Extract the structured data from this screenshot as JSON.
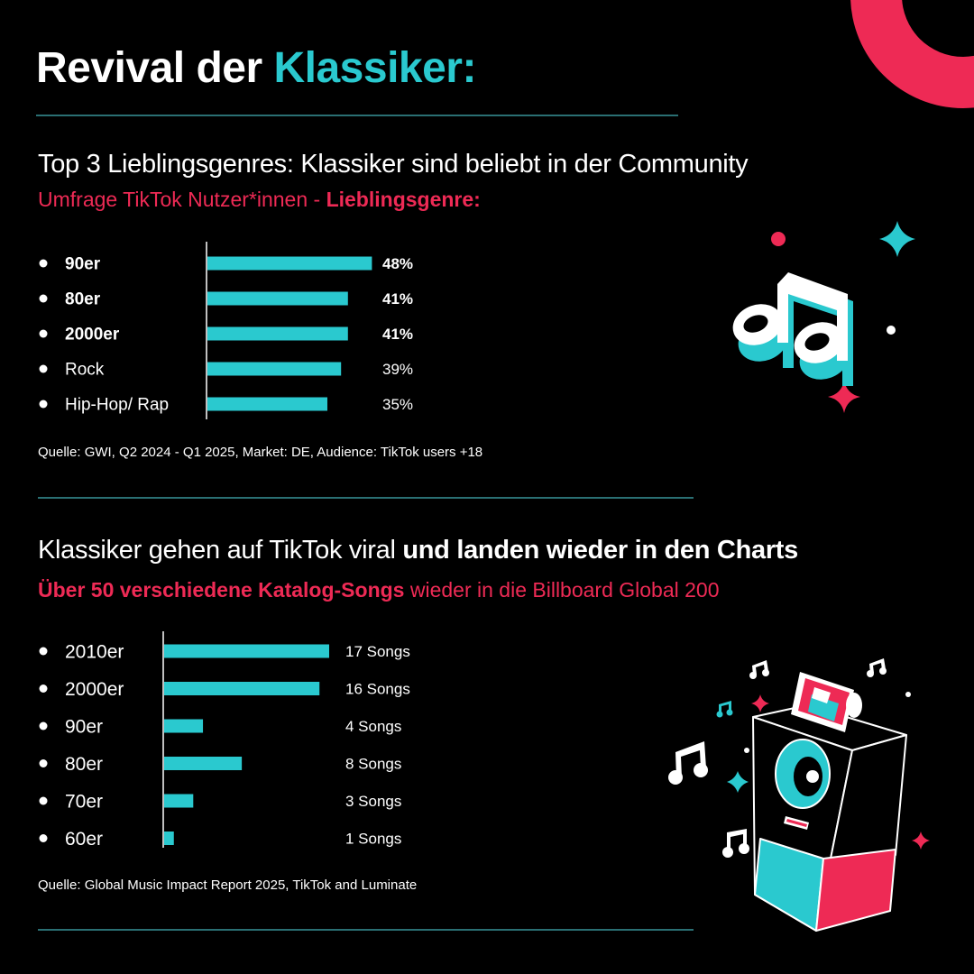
{
  "title": {
    "part1": "Revival der ",
    "part2": "Klassiker:"
  },
  "section1": {
    "heading": "Top 3 Lieblingsgenres: Klassiker sind beliebt in der Community",
    "sub_normal": "Umfrage TikTok Nutzer*innen - ",
    "sub_bold": "Lieblingsgenre:",
    "source": "Quelle: GWI, Q2 2024 - Q1 2025, Market: DE, Audience: TikTok users +18"
  },
  "section2": {
    "heading_normal": "Klassiker gehen auf TikTok viral ",
    "heading_bold": "und landen wieder in den Charts",
    "sub_bold": "Über 50 verschiedene Katalog-Songs",
    "sub_normal": " wieder in die Billboard Global 200",
    "source": "Quelle: Global Music Impact Report 2025, TikTok and Luminate"
  },
  "colors": {
    "bar": "#2ac9cf",
    "accent_pink": "#ee2a55",
    "background": "#000000",
    "rule": "#2a6f73"
  },
  "chart_data": [
    {
      "type": "bar",
      "orientation": "horizontal",
      "categories": [
        "90er",
        "80er",
        "2000er",
        "Rock",
        "Hip-Hop/ Rap"
      ],
      "values": [
        48,
        41,
        41,
        39,
        35
      ],
      "value_labels": [
        "48%",
        "41%",
        "41%",
        "39%",
        "35%"
      ],
      "bold": [
        true,
        true,
        true,
        false,
        false
      ],
      "unit": "%",
      "xlim": [
        0,
        50
      ]
    },
    {
      "type": "bar",
      "orientation": "horizontal",
      "categories": [
        "2010er",
        "2000er",
        "90er",
        "80er",
        "70er",
        "60er"
      ],
      "values": [
        17,
        16,
        4,
        8,
        3,
        1
      ],
      "value_labels": [
        "17 Songs",
        "16 Songs",
        "4 Songs",
        "8 Songs",
        "3 Songs",
        "1 Songs"
      ],
      "unit": "Songs",
      "xlim": [
        0,
        17
      ]
    }
  ]
}
